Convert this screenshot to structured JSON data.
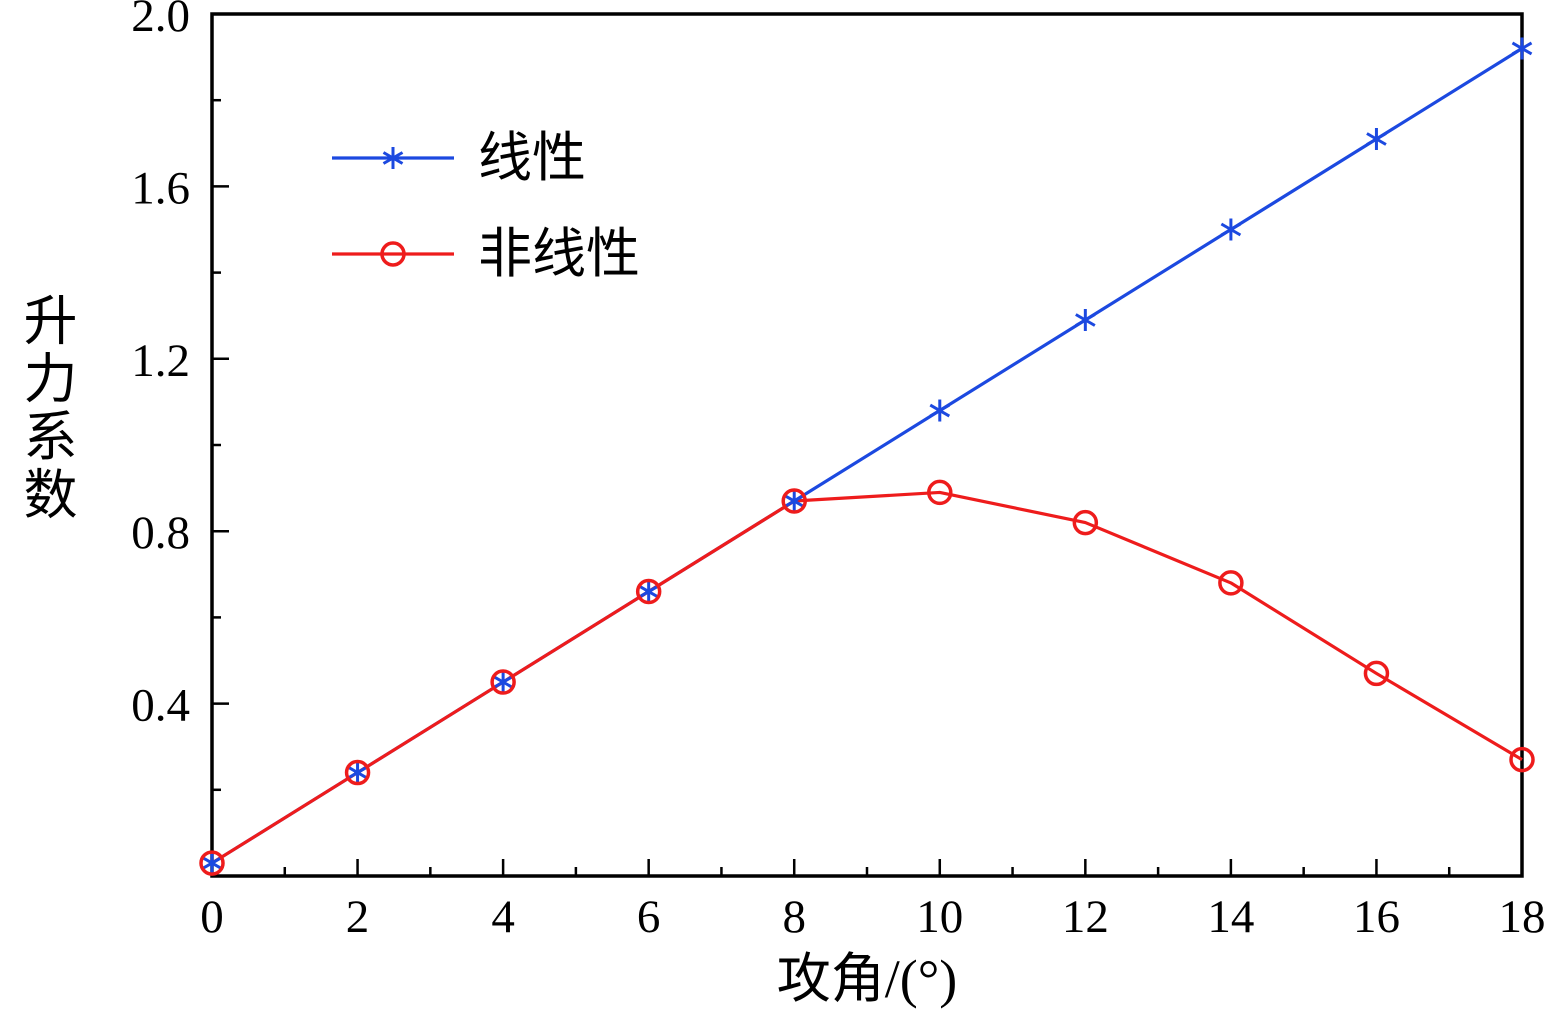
{
  "figure": {
    "background": "#ffffff",
    "frame_color": "#000000"
  },
  "chart_data": {
    "type": "line",
    "title": "",
    "xlabel": "攻角/(°)",
    "ylabel": "升力系数",
    "x": [
      0,
      2,
      4,
      6,
      8,
      10,
      12,
      14,
      16,
      18
    ],
    "xlim": [
      0,
      18
    ],
    "ylim": [
      0,
      2.0
    ],
    "xticks": [
      0,
      2,
      4,
      6,
      8,
      10,
      12,
      14,
      16,
      18
    ],
    "yticks": [
      0.4,
      0.8,
      1.2,
      1.6,
      2.0
    ],
    "x_minor_step": 1,
    "y_minor_step": 0.2,
    "grid": false,
    "legend_position": "upper-left-inside",
    "series": [
      {
        "name": "线性",
        "color": "#1c49e0",
        "marker": "asterisk",
        "values": [
          0.03,
          0.24,
          0.45,
          0.66,
          0.87,
          1.08,
          1.29,
          1.5,
          1.71,
          1.92
        ]
      },
      {
        "name": "非线性",
        "color": "#ee1c1c",
        "marker": "circle",
        "values": [
          0.03,
          0.24,
          0.45,
          0.66,
          0.87,
          0.89,
          0.82,
          0.68,
          0.47,
          0.27
        ]
      }
    ]
  }
}
